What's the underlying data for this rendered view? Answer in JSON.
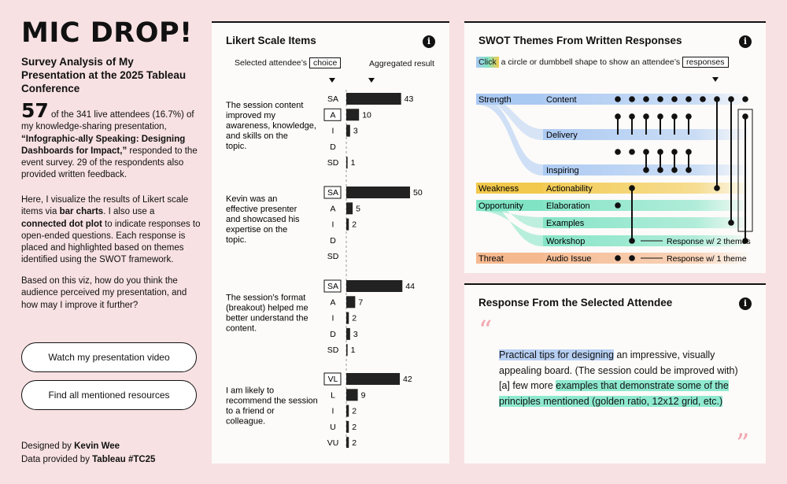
{
  "left": {
    "title": "MIC DROP!",
    "subtitle": "Survey Analysis of My Presentation at the 2025 Tableau Conference",
    "count": "57",
    "p1_a": " of the 341 live attendees (16.7%) of my knowledge-sharing presentation, ",
    "p1_bold": "“Infographic-ally Speaking: Designing Dashboards for Impact,”",
    "p1_b": " responded to the event survey. 29 of the respondents also provided written feedback.",
    "p2_a": "Here, I visualize the results of Likert scale items via ",
    "p2_bold1": "bar charts",
    "p2_b": ". I also use a ",
    "p2_bold2": "connected dot plot",
    "p2_c": " to indicate responses to open-ended questions. Each response is placed and highlighted based on themes identified using the SWOT framework.",
    "p3": "Based on this viz, how do you think the audience perceived my presentation, and how may I improve it further?",
    "btn_video": "Watch my presentation video",
    "btn_resources": "Find all mentioned resources",
    "designed_prefix": "Designed by ",
    "designed_name": "Kevin Wee",
    "data_prefix": "Data provided by ",
    "data_name": "Tableau #TC25"
  },
  "likert": {
    "title": "Likert Scale Items",
    "selected_label": "Selected attendee’s",
    "choice_label": "choice",
    "aggregated_label": "Aggregated result",
    "items": [
      {
        "question": "The session content improved my awareness, knowledge, and skills on the topic.",
        "selected": "A",
        "rows": [
          {
            "label": "SA",
            "value": 43
          },
          {
            "label": "A",
            "value": 10
          },
          {
            "label": "I",
            "value": 3
          },
          {
            "label": "D",
            "value": 0
          },
          {
            "label": "SD",
            "value": 1
          }
        ]
      },
      {
        "question": "Kevin was an effective presenter and showcased his expertise on the topic.",
        "selected": "SA",
        "rows": [
          {
            "label": "SA",
            "value": 50
          },
          {
            "label": "A",
            "value": 5
          },
          {
            "label": "I",
            "value": 2
          },
          {
            "label": "D",
            "value": 0
          },
          {
            "label": "SD",
            "value": 0
          }
        ]
      },
      {
        "question": "The session’s format (breakout) helped me better understand the content.",
        "selected": "SA",
        "rows": [
          {
            "label": "SA",
            "value": 44
          },
          {
            "label": "A",
            "value": 7
          },
          {
            "label": "I",
            "value": 2
          },
          {
            "label": "D",
            "value": 3
          },
          {
            "label": "SD",
            "value": 1
          }
        ]
      },
      {
        "question": "I am likely to recommend the session to a friend or colleague.",
        "selected": "VL",
        "rows": [
          {
            "label": "VL",
            "value": 42
          },
          {
            "label": "L",
            "value": 9
          },
          {
            "label": "I",
            "value": 2
          },
          {
            "label": "U",
            "value": 2
          },
          {
            "label": "VU",
            "value": 2
          }
        ]
      }
    ]
  },
  "swot": {
    "title": "SWOT Themes From Written Responses",
    "click_label": "Click",
    "desc_label": "a circle or dumbbell shape to show an attendee’s",
    "responses_label": "responses",
    "categories": [
      "Strength",
      "Weakness",
      "Opportunity",
      "Threat"
    ],
    "themes": [
      "Content",
      "Delivery",
      "Inspiring",
      "Actionability",
      "Elaboration",
      "Examples",
      "Workshop",
      "Audio Issue"
    ],
    "legend_two": "Response w/ 2 themes",
    "legend_one": "Response w/ 1 theme",
    "colors": {
      "strength": "#a9c8f2",
      "weakness": "#f2c94c",
      "opportunity": "#7fe3c4",
      "threat": "#f5b98f"
    }
  },
  "response": {
    "title": "Response From the Selected Attendee",
    "open_quote": "“",
    "close_quote": "”",
    "hl1": "Practical tips for designing",
    "t1": " an impressive, visually appealing board. (The session could be improved with) [a] few more ",
    "hl2": "examples that demonstrate some of the principles mentioned (golden ratio, 12x12 grid, etc.)"
  }
}
